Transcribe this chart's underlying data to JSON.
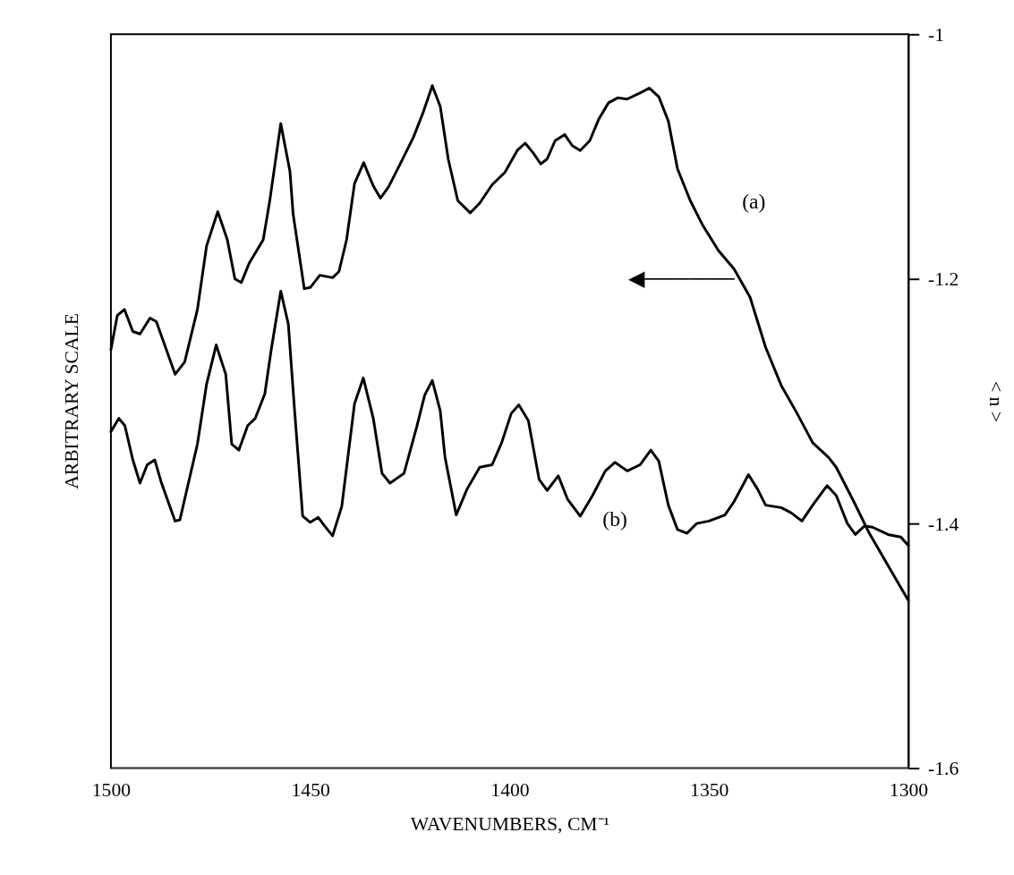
{
  "chart_data": {
    "type": "line",
    "xlabel": "WAVENUMBERS, CM⁻¹",
    "ylabel": "< n >",
    "xlim": [
      1500,
      1300
    ],
    "xticks": [
      1500,
      1450,
      1400,
      1350,
      1300
    ],
    "ylim": [
      -1.6,
      -1
    ],
    "yticks": [
      -1,
      -1.2,
      -1.4,
      -1.6
    ],
    "grid": false,
    "legend": false,
    "marker": "none",
    "line_style": "solid",
    "series": [
      {
        "color": "#000000",
        "x": [
          1500,
          1498.4,
          1496.6,
          1494.5,
          1492.7,
          1490.2,
          1488.6,
          1483.9,
          1481.5,
          1478.3,
          1476.0,
          1473.2,
          1470.8,
          1468.9,
          1467.3,
          1465.3,
          1461.8,
          1460.2,
          1457.4,
          1455.1,
          1454.3,
          1451.5,
          1450.0,
          1447.6,
          1444.4,
          1442.8,
          1440.9,
          1438.9,
          1436.6,
          1434.2,
          1432.4,
          1430.4,
          1427.6,
          1424.1,
          1421.7,
          1419.4,
          1417.4,
          1415.4,
          1413.0,
          1409.9,
          1407.5,
          1404.4,
          1401.2,
          1398.1,
          1396.1,
          1394.1,
          1392.2,
          1390.6,
          1388.6,
          1386.2,
          1384.3,
          1382.3,
          1379.9,
          1377.6,
          1375.2,
          1372.9,
          1370.5,
          1367.3,
          1365.0,
          1362.6,
          1360.2,
          1357.9,
          1354.7,
          1351.6,
          1347.6,
          1343.7,
          1339.7,
          1335.8,
          1331.9,
          1327.9,
          1324.0,
          1320.0,
          1318.1,
          1313.7,
          1309.8,
          1300
        ],
        "values": [
          -1.258,
          -1.23,
          -1.225,
          -1.243,
          -1.245,
          -1.232,
          -1.235,
          -1.278,
          -1.268,
          -1.225,
          -1.173,
          -1.145,
          -1.168,
          -1.2,
          -1.203,
          -1.187,
          -1.168,
          -1.137,
          -1.073,
          -1.112,
          -1.147,
          -1.208,
          -1.207,
          -1.197,
          -1.199,
          -1.194,
          -1.168,
          -1.122,
          -1.105,
          -1.124,
          -1.134,
          -1.125,
          -1.107,
          -1.084,
          -1.064,
          -1.042,
          -1.059,
          -1.102,
          -1.136,
          -1.146,
          -1.138,
          -1.123,
          -1.113,
          -1.095,
          -1.089,
          -1.097,
          -1.106,
          -1.102,
          -1.087,
          -1.082,
          -1.091,
          -1.095,
          -1.087,
          -1.069,
          -1.056,
          -1.052,
          -1.053,
          -1.048,
          -1.044,
          -1.051,
          -1.071,
          -1.11,
          -1.136,
          -1.156,
          -1.177,
          -1.192,
          -1.215,
          -1.256,
          -1.287,
          -1.31,
          -1.334,
          -1.346,
          -1.354,
          -1.382,
          -1.408,
          -1.463
        ]
      },
      {
        "color": "#000000",
        "x": [
          1500,
          1498.0,
          1496.5,
          1494.5,
          1492.7,
          1490.9,
          1489.0,
          1487.4,
          1483.9,
          1482.7,
          1478.3,
          1476.0,
          1473.6,
          1471.2,
          1469.7,
          1467.9,
          1465.7,
          1463.8,
          1461.4,
          1459.8,
          1457.4,
          1455.5,
          1453.9,
          1451.9,
          1450.0,
          1448.0,
          1446.4,
          1444.4,
          1442.1,
          1438.9,
          1436.7,
          1434.2,
          1432.0,
          1430.0,
          1426.5,
          1423.3,
          1421.3,
          1419.4,
          1417.4,
          1416.2,
          1413.4,
          1410.7,
          1407.5,
          1404.4,
          1402.0,
          1399.6,
          1397.7,
          1395.3,
          1392.6,
          1390.6,
          1387.8,
          1385.5,
          1382.3,
          1379.2,
          1376.0,
          1373.6,
          1370.5,
          1367.3,
          1364.6,
          1362.6,
          1360.2,
          1357.9,
          1355.5,
          1353.1,
          1350.0,
          1346.0,
          1343.7,
          1340.1,
          1337.8,
          1335.8,
          1331.9,
          1329.5,
          1326.7,
          1324.0,
          1320.4,
          1318.1,
          1315.3,
          1313.3,
          1311.0,
          1309.0,
          1305.1,
          1301.9,
          1300
        ],
        "values": [
          -1.325,
          -1.314,
          -1.32,
          -1.348,
          -1.367,
          -1.352,
          -1.348,
          -1.366,
          -1.398,
          -1.397,
          -1.335,
          -1.286,
          -1.254,
          -1.278,
          -1.335,
          -1.34,
          -1.32,
          -1.314,
          -1.294,
          -1.258,
          -1.21,
          -1.237,
          -1.309,
          -1.394,
          -1.399,
          -1.395,
          -1.402,
          -1.41,
          -1.386,
          -1.302,
          -1.281,
          -1.314,
          -1.359,
          -1.367,
          -1.359,
          -1.321,
          -1.295,
          -1.283,
          -1.308,
          -1.346,
          -1.393,
          -1.372,
          -1.354,
          -1.352,
          -1.334,
          -1.31,
          -1.303,
          -1.316,
          -1.364,
          -1.373,
          -1.361,
          -1.38,
          -1.394,
          -1.377,
          -1.357,
          -1.35,
          -1.357,
          -1.352,
          -1.34,
          -1.349,
          -1.385,
          -1.405,
          -1.408,
          -1.4,
          -1.398,
          -1.393,
          -1.382,
          -1.36,
          -1.372,
          -1.385,
          -1.387,
          -1.391,
          -1.398,
          -1.385,
          -1.369,
          -1.377,
          -1.4,
          -1.409,
          -1.402,
          -1.403,
          -1.409,
          -1.411,
          -1.418
        ]
      }
    ],
    "annotations": [
      "ARBITRARY SCALE",
      {
        "text": "(a)",
        "x": 1347.6,
        "y": -1.177
      },
      {
        "text": "(b)",
        "x": 1373.6,
        "y": -1.35
      },
      {
        "text": "◀──────",
        "x": 1342.3,
        "y": -1.2
      }
    ]
  }
}
